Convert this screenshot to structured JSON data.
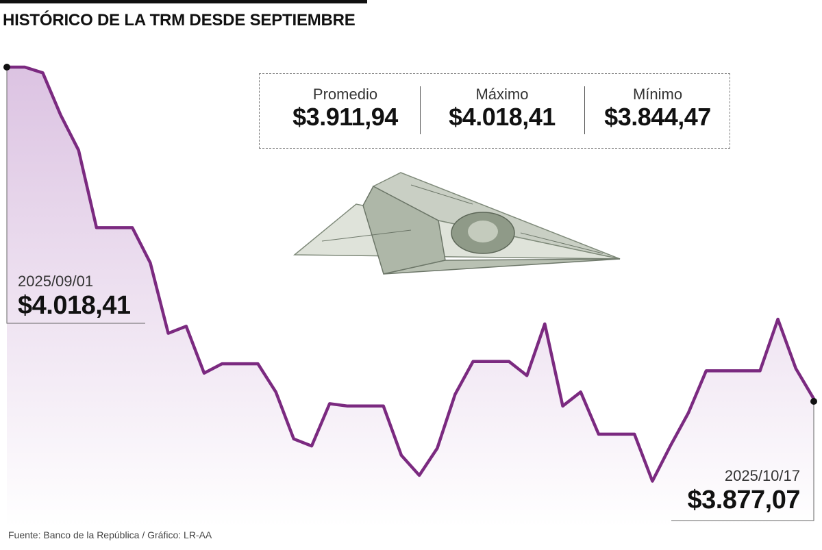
{
  "title": "HISTÓRICO DE LA TRM DESDE SEPTIEMBRE",
  "stats": [
    {
      "label": "Promedio",
      "value": "$3.911,94"
    },
    {
      "label": "Máximo",
      "value": "$4.018,41"
    },
    {
      "label": "Mínimo",
      "value": "$3.844,47"
    }
  ],
  "start_point": {
    "date": "2025/09/01",
    "value": "$4.018,41"
  },
  "end_point": {
    "date": "2025/10/17",
    "value": "$3.877,07"
  },
  "source": "Fuente: Banco de la República / Gráfico: LR-AA",
  "colors": {
    "line": "#7b2a80",
    "fill_top": "#dcc3e2",
    "fill_bottom": "#ffffff",
    "icon": "#eadcee"
  },
  "icons": {
    "decoration": "dollar-circle-icon",
    "illustration": "paper-plane-dollar-bill-icon"
  },
  "chart_data": {
    "type": "area",
    "title": "HISTÓRICO DE LA TRM DESDE SEPTIEMBRE",
    "xlabel": "",
    "ylabel": "",
    "x_range": [
      "2025/09/01",
      "2025/10/17"
    ],
    "ylim": [
      3835,
      4022
    ],
    "grid": false,
    "legend": "none",
    "series": [
      {
        "values": [
          4018.41,
          4018.4,
          4016.0,
          3998.0,
          3983.0,
          3950.0,
          3950.0,
          3950.0,
          3935.0,
          3905.0,
          3908.0,
          3888.0,
          3892.0,
          3892.0,
          3892.0,
          3880.0,
          3860.0,
          3857.0,
          3875.0,
          3874.0,
          3874.0,
          3874.0,
          3853.0,
          3844.47,
          3856.0,
          3879.0,
          3893.0,
          3893.0,
          3893.0,
          3887.0,
          3909.0,
          3874.0,
          3880.0,
          3862.0,
          3862.0,
          3862.0,
          3842.0,
          3857.0,
          3871.0,
          3889.0,
          3889.0,
          3889.0,
          3889.0,
          3911.0,
          3890.0,
          3877.07
        ]
      }
    ]
  }
}
